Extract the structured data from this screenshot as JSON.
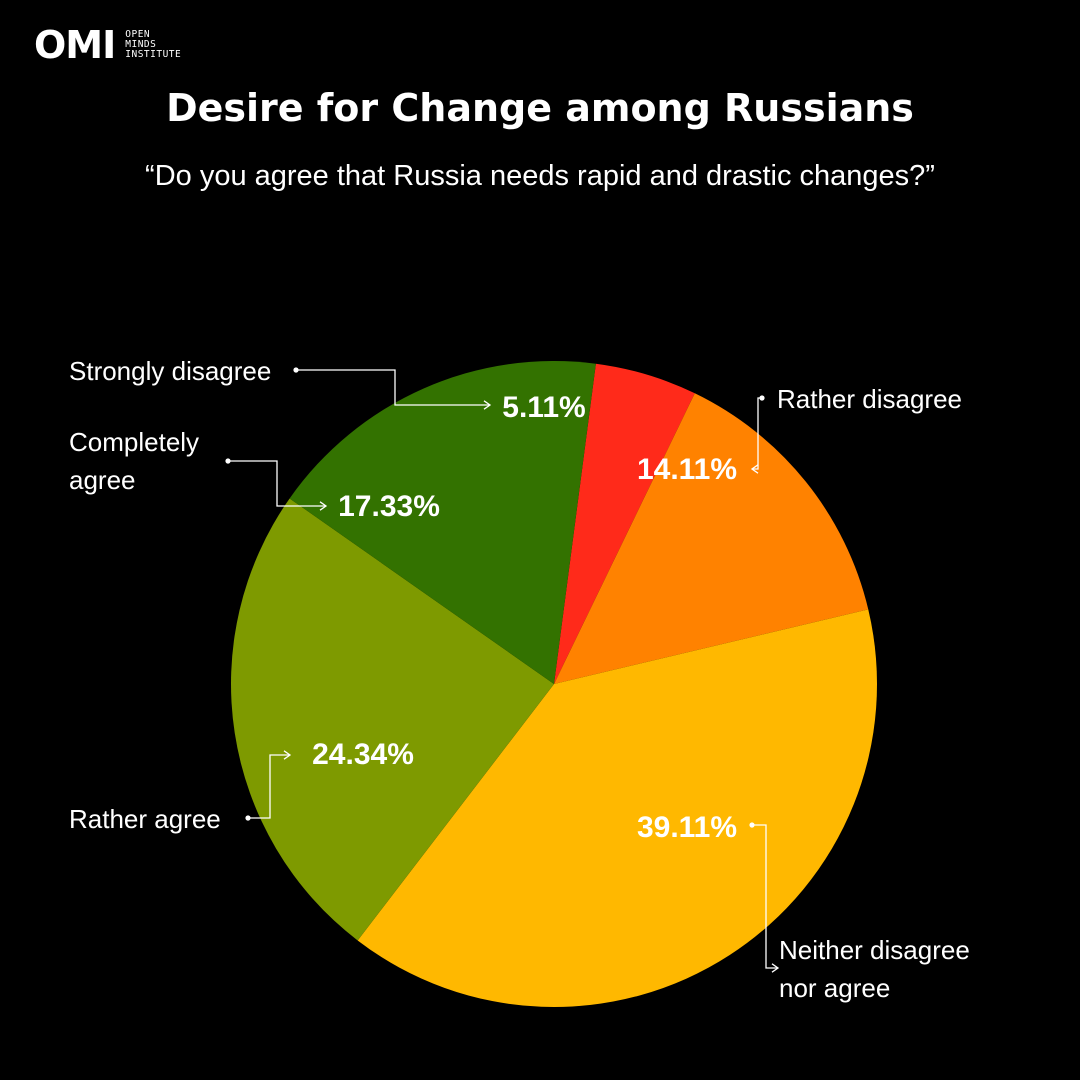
{
  "brand": {
    "mark": "OMI",
    "lines": [
      "OPEN",
      "MINDS",
      "INSTITUTE"
    ]
  },
  "chart_data": {
    "type": "pie",
    "title": "Desire for Change among Russians",
    "subtitle": "“Do you agree that Russia needs rapid and drastic changes?”",
    "slices": [
      {
        "label": "Strongly disagree",
        "value": 5.11,
        "value_label": "5.11%",
        "color": "#FF2A1A"
      },
      {
        "label": "Rather disagree",
        "value": 14.11,
        "value_label": "14.11%",
        "color": "#FF8200"
      },
      {
        "label": "Neither disagree nor agree",
        "value": 39.11,
        "value_label": "39.11%",
        "color": "#FFB800"
      },
      {
        "label": "Rather agree",
        "value": 24.34,
        "value_label": "24.34%",
        "color": "#7E9A00"
      },
      {
        "label": "Completely agree",
        "value": 17.33,
        "value_label": "17.33%",
        "color": "#337200"
      }
    ]
  }
}
